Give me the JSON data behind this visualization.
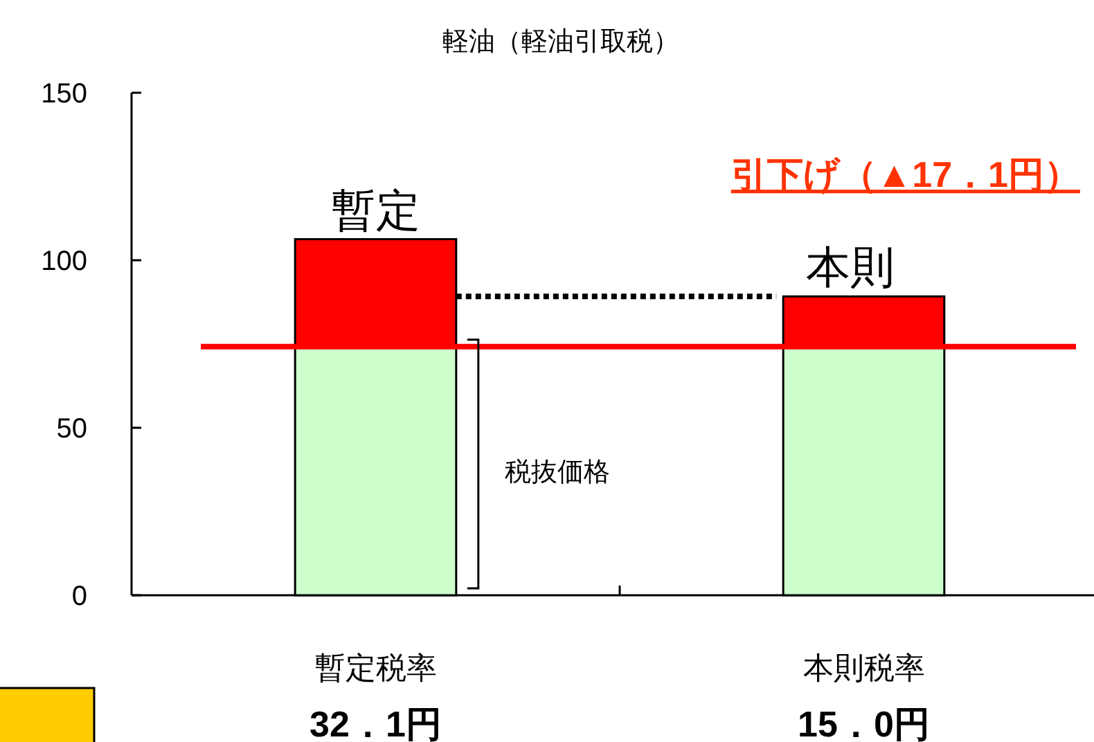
{
  "chart_data": {
    "type": "bar",
    "title": "軽油（軽油引取税）",
    "stacked": true,
    "categories": [
      "暫定税率",
      "本則税率"
    ],
    "series": [
      {
        "color": "#ccffcc",
        "values": [
          74.2,
          74.2
        ]
      },
      {
        "color": "#ff0000",
        "values": [
          32.1,
          15.0
        ],
        "value_labels": [
          "32．1円",
          "15．0円"
        ]
      }
    ],
    "ylim": [
      0,
      150
    ],
    "yticks": [
      0,
      50,
      100,
      150
    ],
    "grid": false,
    "ref_lines": [
      {
        "axis": "y",
        "value": 74.2,
        "color": "#ff0000"
      }
    ],
    "annotations": [
      {
        "text": "暫定",
        "x": "暫定税率",
        "y": 106.3
      },
      {
        "text": "本則",
        "x": "本則税率",
        "y": 89.2
      },
      "引下げ（▲17．1円）",
      "税抜価格"
    ]
  }
}
